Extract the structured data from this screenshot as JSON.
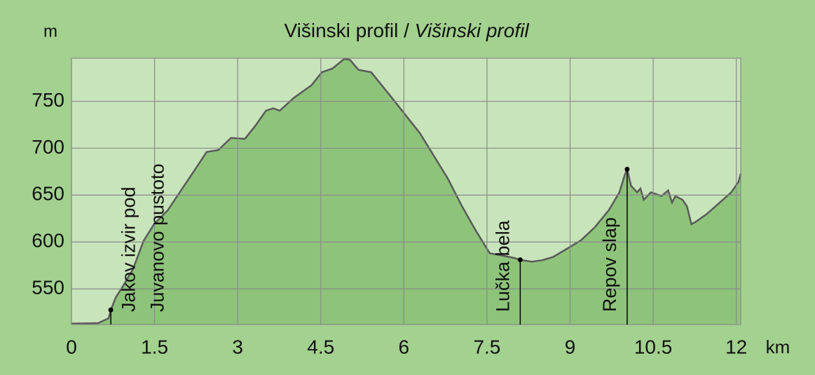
{
  "chart_data": {
    "type": "area",
    "title": "Višinski profil /",
    "subtitle": "Višinski profil",
    "y_axis_label": "m",
    "x_axis_label": "km",
    "x": [
      0,
      0.48,
      0.67,
      0.71,
      0.8,
      0.92,
      1.11,
      1.3,
      1.49,
      1.74,
      2.0,
      2.25,
      2.44,
      2.65,
      2.88,
      3.13,
      3.32,
      3.51,
      3.64,
      3.76,
      4.02,
      4.33,
      4.52,
      4.71,
      4.93,
      5.03,
      5.18,
      5.41,
      5.78,
      6.29,
      6.79,
      7.05,
      7.3,
      7.55,
      7.74,
      7.99,
      8.1,
      8.31,
      8.5,
      8.69,
      8.95,
      9.2,
      9.45,
      9.7,
      9.89,
      9.99,
      10.03,
      10.1,
      10.21,
      10.27,
      10.33,
      10.46,
      10.65,
      10.77,
      10.84,
      10.9,
      11.03,
      11.11,
      11.19,
      11.28,
      11.47,
      11.72,
      11.91,
      12.04,
      12.08
    ],
    "y": [
      513,
      513.5,
      518.6,
      527.6,
      541,
      552,
      571,
      601,
      619,
      634,
      657,
      679,
      696,
      698,
      711,
      710,
      724,
      740,
      742.5,
      740,
      754,
      767,
      781,
      785,
      795.5,
      794,
      783.6,
      781,
      754,
      716,
      668,
      638,
      612,
      588,
      586,
      583,
      581,
      579,
      580.6,
      584,
      593,
      602,
      616,
      634,
      653,
      672,
      677.6,
      660,
      653,
      657,
      645,
      653,
      649,
      655,
      642,
      649,
      645,
      638,
      619,
      622,
      630,
      643,
      653,
      664,
      673
    ],
    "line_color": "#5a5a5a",
    "fill_color": "#8dc47a",
    "plot_background": "#c8e4ba",
    "background": "#a3d18f",
    "xlim": [
      0,
      12.08
    ],
    "ylim": [
      512,
      796
    ],
    "xticks": [
      0,
      1.5,
      3,
      4.5,
      6,
      7.5,
      9,
      10.5,
      12
    ],
    "yticks": [
      550,
      600,
      650,
      700,
      750
    ],
    "grid": true,
    "annotations": [
      {
        "text": [
          "Jakov izvir pod",
          "Juvanovo pustoto"
        ],
        "x": 0.71,
        "y": 527.6
      },
      {
        "text": [
          "Lučka bela"
        ],
        "x": 8.1,
        "y": 581
      },
      {
        "text": [
          "Repov slap"
        ],
        "x": 10.03,
        "y": 677.6
      }
    ]
  }
}
